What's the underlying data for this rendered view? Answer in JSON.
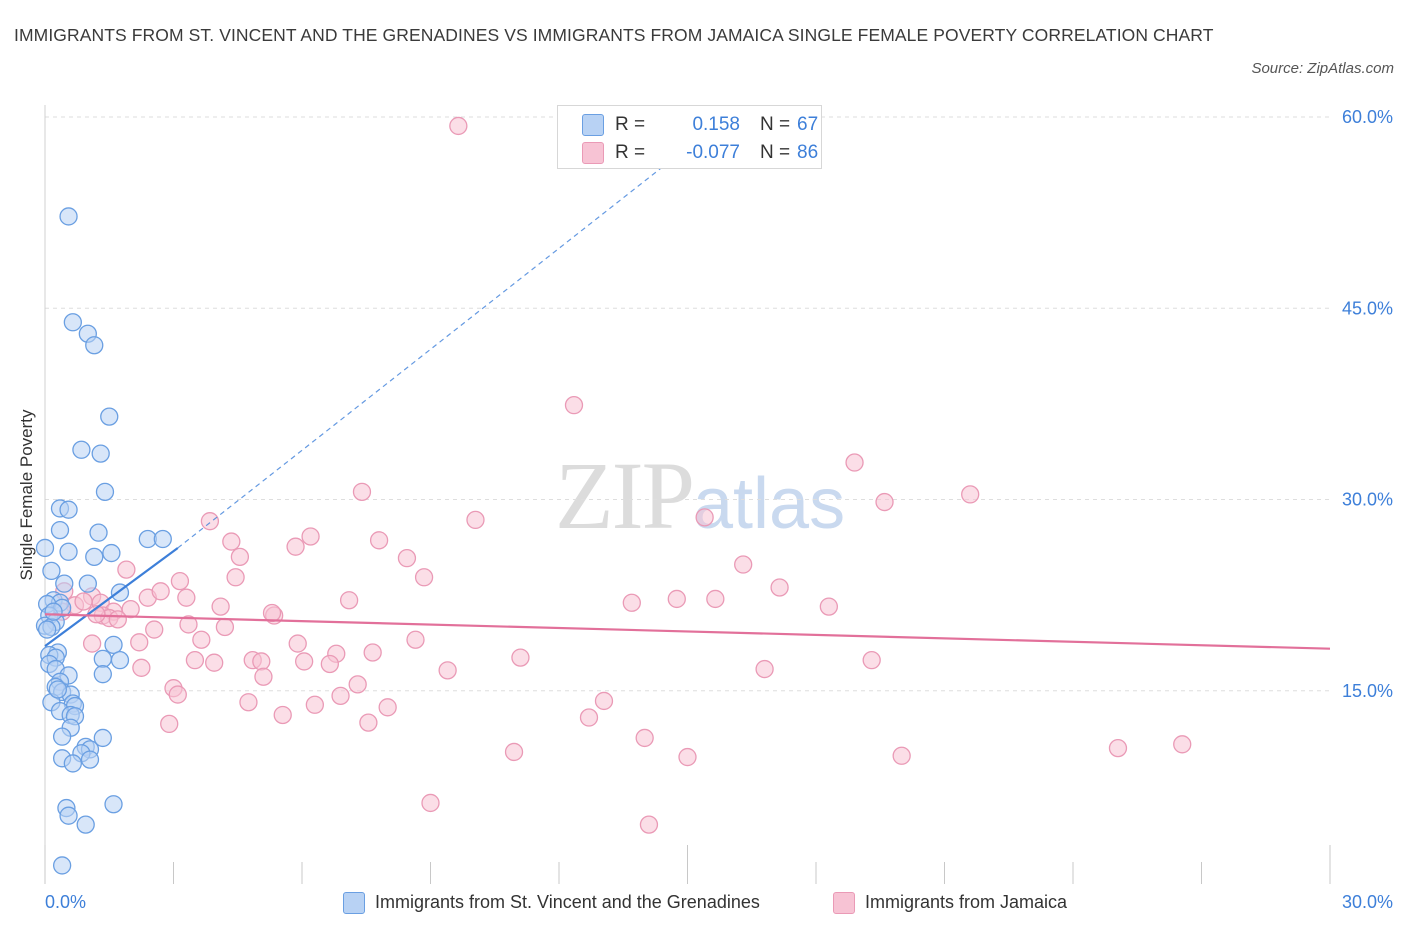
{
  "title": "IMMIGRANTS FROM ST. VINCENT AND THE GRENADINES VS IMMIGRANTS FROM JAMAICA SINGLE FEMALE POVERTY CORRELATION CHART",
  "source": "Source: ZipAtlas.com",
  "watermark": {
    "zip": "ZIP",
    "atlas": "atlas"
  },
  "colors": {
    "blue": "#3d7fd9",
    "blue_fill": "#b8d2f4",
    "blue_stroke": "#6a9fe2",
    "pink": "#e2709a",
    "pink_fill": "#f7c3d4",
    "pink_stroke": "#ea9ab6",
    "grid": "#dedede",
    "axis_label": "#3d7fd9"
  },
  "legend": {
    "rows": [
      {
        "r_label": "R =",
        "r_value": "0.158",
        "n_label": "N =",
        "n_value": "67"
      },
      {
        "r_label": "R =",
        "r_value": "-0.077",
        "n_label": "N =",
        "n_value": "86"
      }
    ]
  },
  "bottom_legend": [
    "Immigrants from St. Vincent and the Grenadines",
    "Immigrants from Jamaica"
  ],
  "chart_data": {
    "type": "scatter",
    "title": "IMMIGRANTS FROM ST. VINCENT AND THE GRENADINES VS IMMIGRANTS FROM JAMAICA SINGLE FEMALE POVERTY CORRELATION CHART",
    "xlabel": "",
    "ylabel": "Single Female Poverty",
    "xlim": [
      0,
      30
    ],
    "ylim": [
      0,
      60
    ],
    "x_tick_labels": [
      "0.0%",
      "30.0%"
    ],
    "y_tick_labels": [
      "15.0%",
      "30.0%",
      "45.0%",
      "60.0%"
    ],
    "y_ticks": [
      15,
      30,
      45,
      60
    ],
    "grid": true,
    "legend_position": "top-center",
    "series": [
      {
        "name": "Immigrants from St. Vincent and the Grenadines",
        "color": "#3d7fd9",
        "r": 0.158,
        "n": 67,
        "trend": {
          "x0": 0,
          "y0": 18.5,
          "x1": 3.1,
          "y1": 26.2,
          "extended_to_x": 14.5,
          "extended_to_y": 56.3
        },
        "points": [
          [
            0.55,
            52.2
          ],
          [
            0.65,
            43.9
          ],
          [
            1.0,
            43.0
          ],
          [
            1.15,
            42.1
          ],
          [
            1.5,
            36.5
          ],
          [
            0.85,
            33.9
          ],
          [
            1.3,
            33.6
          ],
          [
            1.4,
            30.6
          ],
          [
            0.35,
            29.3
          ],
          [
            0.55,
            29.2
          ],
          [
            0.35,
            27.6
          ],
          [
            1.25,
            27.4
          ],
          [
            2.4,
            26.9
          ],
          [
            2.75,
            26.9
          ],
          [
            0.0,
            26.2
          ],
          [
            0.55,
            25.9
          ],
          [
            1.15,
            25.5
          ],
          [
            1.55,
            25.8
          ],
          [
            0.15,
            24.4
          ],
          [
            0.45,
            23.4
          ],
          [
            1.0,
            23.4
          ],
          [
            1.75,
            22.7
          ],
          [
            0.2,
            22.1
          ],
          [
            0.35,
            21.9
          ],
          [
            0.05,
            21.8
          ],
          [
            0.4,
            21.5
          ],
          [
            0.1,
            20.9
          ],
          [
            0.25,
            20.4
          ],
          [
            0.0,
            20.1
          ],
          [
            0.15,
            20.0
          ],
          [
            0.05,
            19.8
          ],
          [
            1.6,
            18.6
          ],
          [
            0.3,
            18.0
          ],
          [
            0.1,
            17.8
          ],
          [
            0.25,
            17.6
          ],
          [
            1.35,
            17.5
          ],
          [
            1.75,
            17.4
          ],
          [
            0.1,
            17.1
          ],
          [
            0.25,
            16.7
          ],
          [
            1.35,
            16.3
          ],
          [
            0.55,
            16.2
          ],
          [
            0.35,
            15.7
          ],
          [
            0.25,
            15.3
          ],
          [
            0.4,
            14.9
          ],
          [
            0.6,
            14.7
          ],
          [
            0.15,
            14.1
          ],
          [
            0.65,
            14.0
          ],
          [
            0.7,
            13.8
          ],
          [
            0.35,
            13.4
          ],
          [
            0.6,
            13.1
          ],
          [
            0.7,
            13.0
          ],
          [
            0.6,
            12.1
          ],
          [
            0.4,
            11.4
          ],
          [
            1.35,
            11.3
          ],
          [
            0.95,
            10.6
          ],
          [
            1.05,
            10.4
          ],
          [
            0.85,
            10.1
          ],
          [
            0.4,
            9.7
          ],
          [
            1.05,
            9.6
          ],
          [
            0.65,
            9.3
          ],
          [
            1.6,
            6.1
          ],
          [
            0.5,
            5.8
          ],
          [
            0.55,
            5.2
          ],
          [
            0.95,
            4.5
          ],
          [
            0.4,
            1.3
          ],
          [
            0.2,
            21.2
          ],
          [
            0.3,
            15.1
          ]
        ]
      },
      {
        "name": "Immigrants from Jamaica",
        "color": "#e2709a",
        "r": -0.077,
        "n": 86,
        "trend": {
          "x0": 0,
          "y0": 21.0,
          "x1": 30,
          "y1": 18.3
        },
        "points": [
          [
            9.65,
            59.3
          ],
          [
            12.35,
            37.4
          ],
          [
            18.9,
            32.9
          ],
          [
            21.6,
            30.4
          ],
          [
            19.6,
            29.8
          ],
          [
            7.4,
            30.6
          ],
          [
            10.05,
            28.4
          ],
          [
            3.85,
            28.3
          ],
          [
            15.4,
            28.6
          ],
          [
            6.2,
            27.1
          ],
          [
            7.8,
            26.8
          ],
          [
            4.35,
            26.7
          ],
          [
            5.85,
            26.3
          ],
          [
            4.55,
            25.5
          ],
          [
            8.45,
            25.4
          ],
          [
            16.3,
            24.9
          ],
          [
            1.9,
            24.5
          ],
          [
            4.45,
            23.9
          ],
          [
            8.85,
            23.9
          ],
          [
            3.15,
            23.6
          ],
          [
            17.15,
            23.1
          ],
          [
            0.45,
            22.8
          ],
          [
            1.1,
            22.4
          ],
          [
            2.4,
            22.3
          ],
          [
            3.3,
            22.3
          ],
          [
            7.1,
            22.1
          ],
          [
            14.75,
            22.2
          ],
          [
            15.65,
            22.2
          ],
          [
            13.7,
            21.9
          ],
          [
            1.3,
            21.9
          ],
          [
            0.7,
            21.7
          ],
          [
            4.1,
            21.6
          ],
          [
            2.0,
            21.4
          ],
          [
            0.4,
            21.2
          ],
          [
            1.6,
            21.2
          ],
          [
            1.35,
            20.9
          ],
          [
            5.35,
            20.9
          ],
          [
            5.3,
            21.1
          ],
          [
            1.5,
            20.7
          ],
          [
            1.7,
            20.6
          ],
          [
            3.35,
            20.2
          ],
          [
            4.2,
            20.0
          ],
          [
            2.55,
            19.8
          ],
          [
            8.65,
            19.0
          ],
          [
            3.65,
            19.0
          ],
          [
            2.2,
            18.8
          ],
          [
            5.9,
            18.7
          ],
          [
            1.1,
            18.7
          ],
          [
            7.65,
            18.0
          ],
          [
            6.8,
            17.9
          ],
          [
            11.1,
            17.6
          ],
          [
            3.5,
            17.4
          ],
          [
            4.85,
            17.4
          ],
          [
            5.05,
            17.3
          ],
          [
            6.05,
            17.3
          ],
          [
            3.95,
            17.2
          ],
          [
            6.65,
            17.1
          ],
          [
            19.3,
            17.4
          ],
          [
            2.25,
            16.8
          ],
          [
            9.4,
            16.6
          ],
          [
            16.8,
            16.7
          ],
          [
            5.1,
            16.1
          ],
          [
            3.0,
            15.2
          ],
          [
            7.3,
            15.5
          ],
          [
            3.1,
            14.7
          ],
          [
            6.9,
            14.6
          ],
          [
            4.75,
            14.1
          ],
          [
            6.3,
            13.9
          ],
          [
            8.0,
            13.7
          ],
          [
            13.05,
            14.2
          ],
          [
            5.55,
            13.1
          ],
          [
            12.7,
            12.9
          ],
          [
            7.55,
            12.5
          ],
          [
            14.0,
            11.3
          ],
          [
            10.95,
            10.2
          ],
          [
            15.0,
            9.8
          ],
          [
            20.0,
            9.9
          ],
          [
            25.05,
            10.5
          ],
          [
            26.55,
            10.8
          ],
          [
            9.0,
            6.2
          ],
          [
            14.1,
            4.5
          ],
          [
            2.9,
            12.4
          ],
          [
            1.2,
            21.0
          ],
          [
            0.9,
            22.0
          ],
          [
            2.7,
            22.8
          ],
          [
            18.3,
            21.6
          ]
        ]
      }
    ]
  }
}
